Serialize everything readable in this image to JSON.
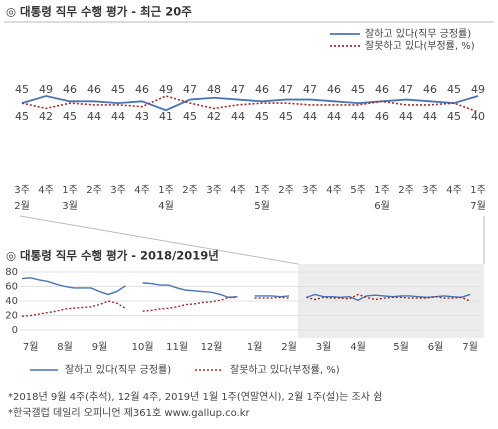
{
  "chart_data": [
    {
      "type": "line",
      "title": "◎  대통령 직무 수행 평가 - 최근 20주",
      "categories": [
        "3주",
        "4주",
        "1주",
        "2주",
        "3주",
        "4주",
        "1주",
        "2주",
        "3주",
        "4주",
        "1주",
        "2주",
        "3주",
        "4주",
        "5주",
        "1주",
        "2주",
        "3주",
        "4주",
        "1주"
      ],
      "months": [
        "2월",
        null,
        "3월",
        null,
        null,
        null,
        "4월",
        null,
        null,
        null,
        "5월",
        null,
        null,
        null,
        null,
        "6월",
        null,
        null,
        null,
        "7월"
      ],
      "series": [
        {
          "name": "잘하고 있다(직무 긍정률)",
          "color": "#4a74b4",
          "style": "solid",
          "values": [
            45,
            49,
            46,
            46,
            45,
            46,
            41,
            47,
            48,
            47,
            46,
            47,
            47,
            46,
            45,
            46,
            47,
            46,
            45,
            49
          ]
        },
        {
          "name": "잘못하고 있다(부정률, %)",
          "color": "#9e2a2a",
          "style": "dotted",
          "values": [
            45,
            42,
            45,
            44,
            44,
            43,
            49,
            45,
            42,
            44,
            45,
            45,
            44,
            44,
            44,
            46,
            44,
            44,
            45,
            40
          ]
        }
      ],
      "legend": "top-right",
      "data_labels": true
    },
    {
      "type": "line",
      "title": "◎  대통령 직무 수행 평가 - 2018/2019년",
      "categories": [
        null,
        "7월",
        null,
        null,
        null,
        "8월",
        null,
        null,
        null,
        "9월",
        null,
        null,
        null,
        null,
        "10월",
        null,
        null,
        null,
        "11월",
        null,
        null,
        null,
        "12월",
        null,
        null,
        null,
        null,
        "1월",
        null,
        null,
        null,
        "2월",
        null,
        null,
        null,
        "3월",
        null,
        null,
        null,
        "4월",
        null,
        null,
        null,
        null,
        "5월",
        null,
        null,
        null,
        "6월",
        null,
        null,
        null,
        "7월"
      ],
      "series": [
        {
          "name": "잘하고 있다(직무 긍정률)",
          "color": "#4a74b4",
          "style": "solid",
          "values": [
            71,
            72,
            69,
            67,
            63,
            60,
            58,
            58,
            58,
            53,
            49,
            53,
            61,
            null,
            65,
            64,
            62,
            62,
            58,
            55,
            54,
            53,
            52,
            49,
            45,
            46,
            null,
            47,
            47,
            47,
            46,
            47,
            null,
            45,
            49,
            46,
            46,
            45,
            46,
            41,
            47,
            48,
            47,
            46,
            47,
            47,
            46,
            45,
            46,
            47,
            46,
            45,
            49
          ]
        },
        {
          "name": "잘못하고 있다(부정률, %)",
          "color": "#9e2a2a",
          "style": "dotted",
          "values": [
            19,
            20,
            22,
            24,
            26,
            29,
            30,
            31,
            32,
            35,
            40,
            37,
            30,
            null,
            26,
            27,
            29,
            30,
            32,
            35,
            36,
            38,
            39,
            41,
            45,
            45,
            null,
            44,
            44,
            44,
            45,
            44,
            null,
            45,
            42,
            45,
            44,
            44,
            43,
            49,
            45,
            42,
            44,
            45,
            45,
            44,
            44,
            44,
            46,
            44,
            44,
            45,
            40
          ]
        }
      ],
      "ylim": [
        0,
        80
      ],
      "yticks": [
        0,
        20,
        40,
        60,
        80
      ],
      "grid": true,
      "legend": "bottom"
    }
  ],
  "footnotes": [
    "*2018년 9월 4주(추석), 12월 4주, 2019년 1월 1주(연말연시), 2월 1주(설)는 조사 쉼",
    "*한국갤럽 데일리 오피니언 제361호 www.gallup.co.kr"
  ]
}
